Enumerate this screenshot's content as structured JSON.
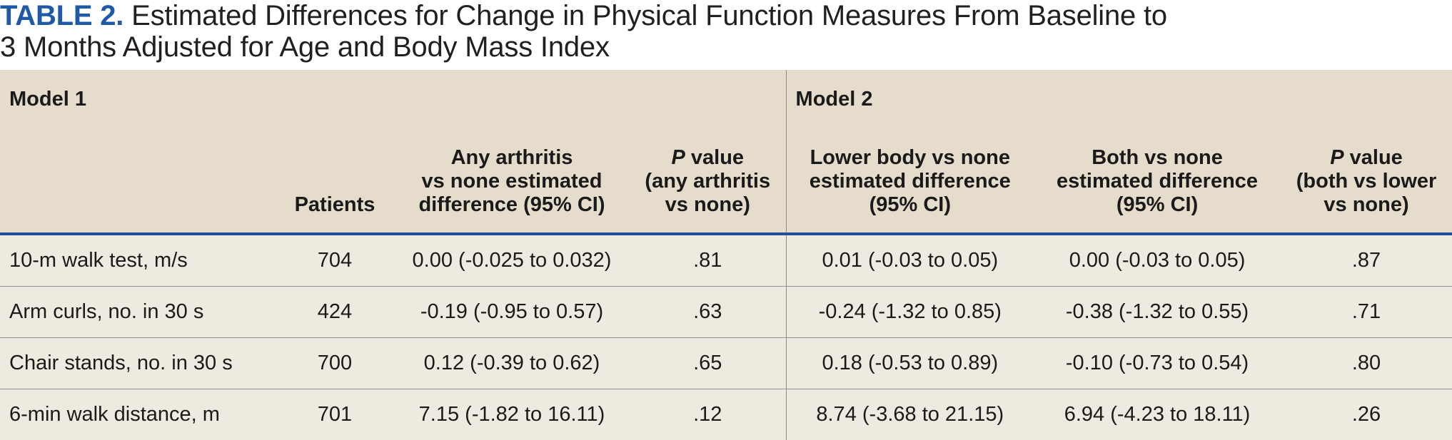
{
  "title": {
    "label": "TABLE 2.",
    "text_line1": "Estimated Differences for Change in Physical Function Measures From Baseline to",
    "text_line2": "3 Months Adjusted for Age and Body Mass Index"
  },
  "models": {
    "model1": "Model 1",
    "model2": "Model 2"
  },
  "headers": {
    "measure": "",
    "patients": "Patients",
    "any_arthritis": [
      "Any arthritis",
      "vs none estimated",
      "difference (95% CI)"
    ],
    "p_value_any": {
      "italic": "P",
      "rest": " value",
      "line2": "(any arthritis",
      "line3": "vs none)"
    },
    "lower_body": [
      "Lower body vs none",
      "estimated difference",
      "(95% CI)"
    ],
    "both": [
      "Both vs none",
      "estimated difference",
      "(95% CI)"
    ],
    "p_value_both": {
      "italic": "P",
      "rest": " value",
      "line2": "(both vs lower",
      "line3": "vs none)"
    }
  },
  "rows": [
    {
      "measure": "10-m walk test, m/s",
      "patients": "704",
      "any": "0.00 (-0.025 to 0.032)",
      "p_any": ".81",
      "lower": "0.01 (-0.03 to 0.05)",
      "both": "0.00 (-0.03 to 0.05)",
      "p_both": ".87"
    },
    {
      "measure": "Arm curls, no. in 30 s",
      "patients": "424",
      "any": "-0.19 (-0.95 to 0.57)",
      "p_any": ".63",
      "lower": "-0.24 (-1.32 to 0.85)",
      "both": "-0.38 (-1.32 to 0.55)",
      "p_both": ".71"
    },
    {
      "measure": "Chair stands, no. in 30 s",
      "patients": "700",
      "any": "0.12 (-0.39 to 0.62)",
      "p_any": ".65",
      "lower": "0.18 (-0.53 to 0.89)",
      "both": "-0.10 (-0.73 to 0.54)",
      "p_both": ".80"
    },
    {
      "measure": "6-min walk distance, m",
      "patients": "701",
      "any": "7.15 (-1.82 to 16.11)",
      "p_any": ".12",
      "lower": "8.74 (-3.68 to 21.15)",
      "both": "6.94 (-4.23 to 18.11)",
      "p_both": ".26"
    }
  ]
}
